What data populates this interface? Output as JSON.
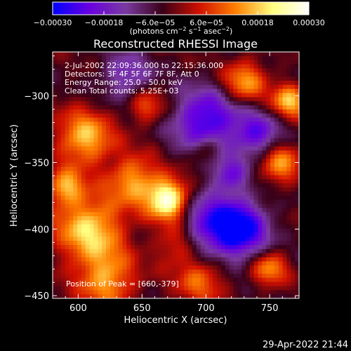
{
  "chart_data": {
    "type": "heatmap",
    "title": "Reconstructed RHESSI Image",
    "xlabel": "Heliocentric X (arcsec)",
    "ylabel": "Heliocentric Y (arcsec)",
    "xlim": [
      580,
      773
    ],
    "ylim": [
      -452,
      -267
    ],
    "x_ticks": [
      {
        "value": 600,
        "label": "600"
      },
      {
        "value": 650,
        "label": "650"
      },
      {
        "value": 700,
        "label": "700"
      },
      {
        "value": 750,
        "label": "750"
      }
    ],
    "y_ticks": [
      {
        "value": -300,
        "label": "−300"
      },
      {
        "value": -350,
        "label": "−350"
      },
      {
        "value": -400,
        "label": "−400"
      },
      {
        "value": -450,
        "label": "−450"
      }
    ],
    "colorbar": {
      "range": [
        -0.0003,
        0.0003
      ],
      "ticks": [
        {
          "value": -0.0003,
          "label": "−0.00030"
        },
        {
          "value": -0.00018,
          "label": "−0.00018"
        },
        {
          "value": -6e-05,
          "label": "−6.0e−05"
        },
        {
          "value": 6e-05,
          "label": "6.0e−05"
        },
        {
          "value": 0.00018,
          "label": "0.00018"
        },
        {
          "value": 0.0003,
          "label": "0.00030"
        }
      ],
      "units_parts": [
        "(photons cm",
        "−2",
        " s",
        "−1",
        " asec",
        "−2",
        ")"
      ],
      "colors": [
        "#0000ff",
        "#6a00e0",
        "#7a3aa0",
        "#3a0018",
        "#d01000",
        "#ff8000",
        "#ffff80",
        "#ffffff"
      ]
    },
    "annotations": [
      "2-Jul-2002 22:09:36.000 to 22:15:36.000",
      "Detectors: 3F 4F 5F 6F 7F 8F, Att 0",
      "Energy Range: 25.0 - 50.0 keV",
      "Clean     Total counts: 5.25E+03"
    ],
    "peak_label": "Position of Peak = [660,-379]",
    "peak": [
      660,
      -379
    ],
    "grid": false
  },
  "timestamp": "29-Apr-2022 21:44"
}
